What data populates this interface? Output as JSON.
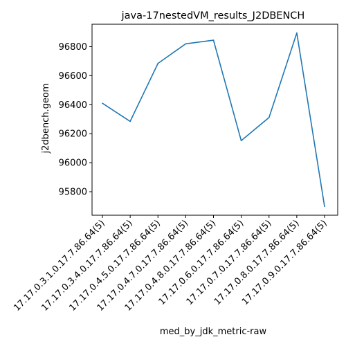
{
  "chart_data": {
    "type": "line",
    "title": "java-17nestedVM_results_J2DBENCH",
    "xlabel": "med_by_jdk_metric-raw",
    "ylabel": "j2dbench.geom",
    "categories": [
      "17.17.0.3.1.0.17.7.86.64(5)",
      "17.17.0.3.4.0.17.7.86.64(5)",
      "17.17.0.4.5.0.17.7.86.64(5)",
      "17.17.0.4.7.0.17.7.86.64(5)",
      "17.17.0.4.8.0.17.7.86.64(5)",
      "17.17.0.6.0.17.7.86.64(5)",
      "17.17.0.7.0.17.7.86.64(5)",
      "17.17.0.8.0.17.7.86.64(5)",
      "17.17.0.9.0.17.7.86.64(5)"
    ],
    "series": [
      {
        "values": [
          96410,
          96285,
          96685,
          96820,
          96845,
          96152,
          96312,
          96895,
          95698
        ],
        "color": "#1f77b4"
      }
    ],
    "yticks": [
      95800,
      96000,
      96200,
      96400,
      96600,
      96800
    ],
    "ylim": [
      95638,
      96955
    ],
    "grid": false,
    "legend": "none"
  }
}
